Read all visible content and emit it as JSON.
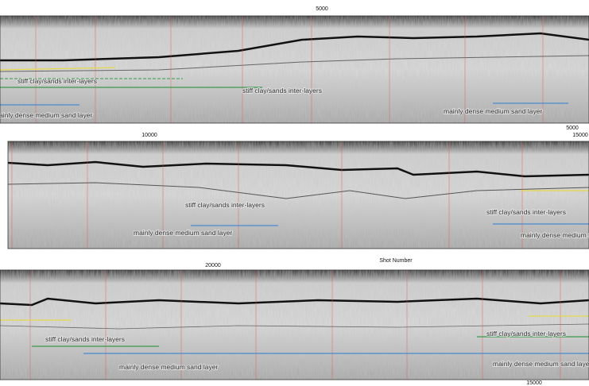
{
  "panels": [
    {
      "top_ticks": [
        "5000"
      ],
      "bottom_ticks": [
        "5000"
      ],
      "annotations": [
        "stiff clay/sands inter-layers",
        "stiff clay/sands inter-layers",
        "mainly dense medium sand layer",
        "mainly dense medium sand layer"
      ]
    },
    {
      "top_ticks": [
        "10000",
        "15000"
      ],
      "bottom_label": "Shot Number",
      "annotations": [
        "stiff clay/sands inter-layers",
        "stiff clay/sands inter-layers",
        "mainly dense medium sand layer",
        "mainly dense medium sand layer"
      ]
    },
    {
      "top_ticks": [
        "20000"
      ],
      "bottom_ticks": [
        "15000"
      ],
      "annotations": [
        "stiff clay/sands inter-layers",
        "stiff clay/sands inter-layers",
        "mainly dense medium sand layer",
        "mainly dense medium sand layer"
      ]
    }
  ]
}
